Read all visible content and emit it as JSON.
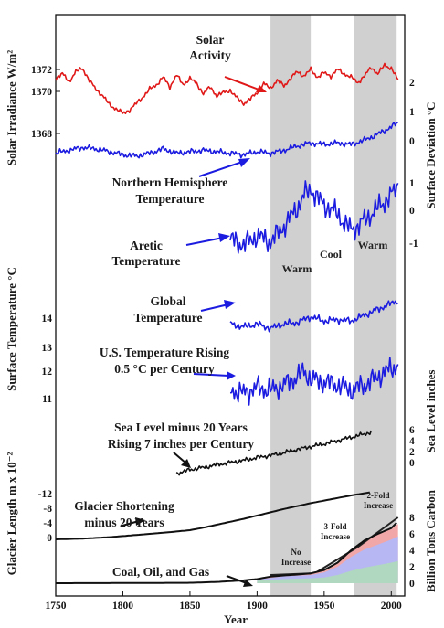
{
  "chart_data": {
    "type": "line",
    "title": "",
    "x_axis": {
      "label": "Year",
      "range": [
        1750,
        2010
      ],
      "ticks": [
        "1750",
        "1800",
        "1850",
        "1900",
        "1950",
        "2000"
      ]
    },
    "shaded_periods": [
      {
        "start": 1910,
        "end": 1940,
        "label": "Warm"
      },
      {
        "start": 1972,
        "end": 2004,
        "label": "Warm"
      }
    ],
    "period_labels": {
      "warm1": "Warm",
      "cool": "Cool",
      "warm2": "Warm"
    },
    "axes_labels": {
      "solar": "Solar Irradiance W/m²",
      "surface_deviation": "Surface Deviation °C",
      "surface_temperature": "Surface Temperature °C",
      "sea_level": "Sea Level inches",
      "glacier": "Glacier Length m x 10⁻²",
      "carbon": "Billion Tons Carbon"
    },
    "solar_ticks": [
      "1372",
      "1370",
      "1368"
    ],
    "deviation_ticks": [
      "2",
      "1",
      "0",
      "1",
      "0",
      "-1"
    ],
    "surface_temp_ticks": [
      "14",
      "13",
      "12",
      "11"
    ],
    "sea_level_ticks": [
      "6",
      "4",
      "2",
      "0"
    ],
    "glacier_ticks": [
      "-12",
      "-8",
      "-4",
      "0"
    ],
    "carbon_ticks": [
      "8",
      "6",
      "4",
      "2",
      "0"
    ],
    "annotations": {
      "solar": [
        "Solar",
        "Activity"
      ],
      "nh": [
        "Northern Hemisphere",
        "Temperature"
      ],
      "arctic": [
        "Aretic",
        "Temperature"
      ],
      "global": [
        "Global",
        "Temperature"
      ],
      "us": [
        "U.S. Temperature Rising",
        "0.5 °C per Century"
      ],
      "sea": [
        "Sea Level minus 20 Years",
        "Rising 7 inches per Century"
      ],
      "glacier": [
        "Glacier Shortening",
        "minus 20 Years"
      ],
      "coal": "Coal, Oil, and Gas",
      "no_increase": [
        "No",
        "Increase"
      ],
      "three_fold": [
        "3-Fold",
        "Increase"
      ],
      "two_fold": [
        "2-Fold",
        "Increase"
      ]
    },
    "series": [
      {
        "name": "Solar Activity",
        "unit": "W/m2",
        "color": "#e01818",
        "points": [
          [
            1750,
            1371.2
          ],
          [
            1755,
            1371.6
          ],
          [
            1760,
            1370.9
          ],
          [
            1765,
            1371.8
          ],
          [
            1770,
            1372.1
          ],
          [
            1775,
            1371.0
          ],
          [
            1780,
            1370.2
          ],
          [
            1785,
            1369.6
          ],
          [
            1790,
            1368.8
          ],
          [
            1795,
            1368.4
          ],
          [
            1800,
            1368.0
          ],
          [
            1805,
            1368.3
          ],
          [
            1810,
            1368.9
          ],
          [
            1815,
            1369.5
          ],
          [
            1820,
            1370.2
          ],
          [
            1825,
            1370.6
          ],
          [
            1830,
            1371.3
          ],
          [
            1835,
            1370.4
          ],
          [
            1840,
            1371.5
          ],
          [
            1845,
            1370.6
          ],
          [
            1850,
            1371.2
          ],
          [
            1855,
            1370.7
          ],
          [
            1860,
            1369.8
          ],
          [
            1865,
            1370.4
          ],
          [
            1870,
            1369.6
          ],
          [
            1875,
            1369.9
          ],
          [
            1880,
            1370.1
          ],
          [
            1885,
            1369.4
          ],
          [
            1890,
            1368.9
          ],
          [
            1895,
            1369.3
          ],
          [
            1900,
            1369.9
          ],
          [
            1905,
            1370.7
          ],
          [
            1910,
            1370.3
          ],
          [
            1915,
            1371.0
          ],
          [
            1920,
            1370.5
          ],
          [
            1925,
            1371.2
          ],
          [
            1930,
            1371.8
          ],
          [
            1935,
            1371.4
          ],
          [
            1940,
            1372.0
          ],
          [
            1945,
            1371.3
          ],
          [
            1950,
            1371.7
          ],
          [
            1955,
            1371.4
          ],
          [
            1960,
            1372.0
          ],
          [
            1965,
            1371.6
          ],
          [
            1970,
            1371.3
          ],
          [
            1975,
            1370.8
          ],
          [
            1980,
            1371.4
          ],
          [
            1985,
            1372.2
          ],
          [
            1990,
            1371.6
          ],
          [
            1995,
            1372.4
          ],
          [
            2000,
            1372.1
          ],
          [
            2003,
            1371.5
          ],
          [
            2005,
            1371.0
          ]
        ]
      },
      {
        "name": "Northern Hemisphere Temperature",
        "unit": "°C",
        "color": "#1c1ce0",
        "points": [
          [
            1750,
            -0.3
          ],
          [
            1760,
            -0.2
          ],
          [
            1770,
            -0.1
          ],
          [
            1780,
            -0.15
          ],
          [
            1790,
            -0.25
          ],
          [
            1800,
            -0.35
          ],
          [
            1810,
            -0.4
          ],
          [
            1820,
            -0.3
          ],
          [
            1830,
            -0.15
          ],
          [
            1840,
            -0.3
          ],
          [
            1850,
            -0.25
          ],
          [
            1860,
            -0.2
          ],
          [
            1870,
            -0.25
          ],
          [
            1880,
            -0.3
          ],
          [
            1890,
            -0.35
          ],
          [
            1900,
            -0.25
          ],
          [
            1910,
            -0.3
          ],
          [
            1920,
            -0.2
          ],
          [
            1930,
            -0.05
          ],
          [
            1940,
            0.05
          ],
          [
            1950,
            0.0
          ],
          [
            1960,
            0.05
          ],
          [
            1970,
            0.0
          ],
          [
            1980,
            0.15
          ],
          [
            1990,
            0.35
          ],
          [
            2000,
            0.6
          ],
          [
            2005,
            0.75
          ]
        ]
      },
      {
        "name": "Aretic Temperature",
        "unit": "°C",
        "color": "#1c1ce0",
        "points": [
          [
            1880,
            -0.8
          ],
          [
            1890,
            -1.0
          ],
          [
            1900,
            -0.7
          ],
          [
            1910,
            -0.9
          ],
          [
            1920,
            -0.4
          ],
          [
            1930,
            0.2
          ],
          [
            1935,
            0.6
          ],
          [
            1940,
            0.8
          ],
          [
            1945,
            0.5
          ],
          [
            1950,
            0.3
          ],
          [
            1960,
            0.0
          ],
          [
            1965,
            -0.3
          ],
          [
            1970,
            -0.5
          ],
          [
            1975,
            -0.4
          ],
          [
            1980,
            -0.2
          ],
          [
            1990,
            0.2
          ],
          [
            2000,
            0.6
          ],
          [
            2005,
            0.9
          ]
        ]
      },
      {
        "name": "Global Temperature",
        "unit": "°C",
        "color": "#1c1ce0",
        "points": [
          [
            1880,
            13.8
          ],
          [
            1890,
            13.7
          ],
          [
            1900,
            13.8
          ],
          [
            1910,
            13.65
          ],
          [
            1920,
            13.8
          ],
          [
            1930,
            13.85
          ],
          [
            1940,
            14.05
          ],
          [
            1950,
            13.9
          ],
          [
            1960,
            13.95
          ],
          [
            1970,
            13.9
          ],
          [
            1980,
            14.1
          ],
          [
            1990,
            14.3
          ],
          [
            2000,
            14.5
          ],
          [
            2005,
            14.6
          ]
        ]
      },
      {
        "name": "U.S. Temperature",
        "unit": "°C",
        "color": "#1c1ce0",
        "points": [
          [
            1880,
            11.3
          ],
          [
            1890,
            11.2
          ],
          [
            1900,
            11.4
          ],
          [
            1910,
            11.3
          ],
          [
            1920,
            11.5
          ],
          [
            1930,
            11.8
          ],
          [
            1935,
            12.0
          ],
          [
            1940,
            11.7
          ],
          [
            1950,
            11.6
          ],
          [
            1960,
            11.5
          ],
          [
            1970,
            11.3
          ],
          [
            1980,
            11.5
          ],
          [
            1990,
            11.8
          ],
          [
            2000,
            12.1
          ],
          [
            2005,
            12.2
          ]
        ]
      },
      {
        "name": "Sea Level",
        "unit": "inches",
        "color": "#111111",
        "points": [
          [
            1840,
            -2.0
          ],
          [
            1850,
            -1.3
          ],
          [
            1860,
            -0.9
          ],
          [
            1870,
            -0.4
          ],
          [
            1880,
            0.0
          ],
          [
            1890,
            0.4
          ],
          [
            1900,
            0.9
          ],
          [
            1910,
            1.3
          ],
          [
            1920,
            1.8
          ],
          [
            1930,
            2.4
          ],
          [
            1940,
            2.9
          ],
          [
            1950,
            3.4
          ],
          [
            1960,
            4.0
          ],
          [
            1970,
            4.6
          ],
          [
            1980,
            5.2
          ],
          [
            1985,
            5.6
          ]
        ]
      },
      {
        "name": "Glacier Shortening",
        "unit": "m x 10^-2",
        "color": "#111111",
        "points": [
          [
            1750,
            0.0
          ],
          [
            1770,
            0.2
          ],
          [
            1790,
            0.6
          ],
          [
            1800,
            0.9
          ],
          [
            1810,
            1.2
          ],
          [
            1830,
            1.8
          ],
          [
            1850,
            2.5
          ],
          [
            1860,
            3.2
          ],
          [
            1870,
            4.0
          ],
          [
            1880,
            4.8
          ],
          [
            1890,
            5.6
          ],
          [
            1900,
            6.5
          ],
          [
            1910,
            7.4
          ],
          [
            1920,
            8.3
          ],
          [
            1930,
            9.1
          ],
          [
            1940,
            9.9
          ],
          [
            1950,
            10.6
          ],
          [
            1960,
            11.3
          ],
          [
            1970,
            12.0
          ],
          [
            1980,
            12.6
          ],
          [
            1985,
            12.9
          ]
        ]
      },
      {
        "name": "Coal, Oil, and Gas",
        "unit": "billion tons carbon",
        "color": "#111111",
        "points": [
          [
            1750,
            0.0
          ],
          [
            1800,
            0.02
          ],
          [
            1850,
            0.05
          ],
          [
            1870,
            0.15
          ],
          [
            1890,
            0.35
          ],
          [
            1900,
            0.5
          ],
          [
            1910,
            0.8
          ],
          [
            1920,
            0.95
          ],
          [
            1930,
            1.05
          ],
          [
            1940,
            1.2
          ],
          [
            1950,
            1.6
          ],
          [
            1960,
            2.5
          ],
          [
            1970,
            4.0
          ],
          [
            1980,
            5.2
          ],
          [
            1990,
            6.0
          ],
          [
            2000,
            6.7
          ],
          [
            2005,
            7.5
          ]
        ]
      }
    ],
    "emission_breakdown": [
      {
        "color": "#f1a7a7",
        "top": [
          [
            1900,
            0.5
          ],
          [
            1920,
            0.95
          ],
          [
            1940,
            1.2
          ],
          [
            1950,
            1.6
          ],
          [
            1960,
            2.5
          ],
          [
            1970,
            4.0
          ],
          [
            1980,
            5.2
          ],
          [
            1990,
            6.0
          ],
          [
            2000,
            6.7
          ],
          [
            2005,
            7.2
          ]
        ]
      },
      {
        "color": "#b7b7f3",
        "top": [
          [
            1900,
            0.45
          ],
          [
            1920,
            0.85
          ],
          [
            1940,
            1.0
          ],
          [
            1950,
            1.3
          ],
          [
            1960,
            2.0
          ],
          [
            1970,
            3.2
          ],
          [
            1980,
            4.1
          ],
          [
            1990,
            4.7
          ],
          [
            2000,
            5.3
          ],
          [
            2005,
            5.7
          ]
        ]
      },
      {
        "color": "#b0d8c0",
        "top": [
          [
            1900,
            0.3
          ],
          [
            1920,
            0.5
          ],
          [
            1940,
            0.6
          ],
          [
            1950,
            0.7
          ],
          [
            1960,
            1.0
          ],
          [
            1970,
            1.5
          ],
          [
            1980,
            1.9
          ],
          [
            1990,
            2.2
          ],
          [
            2000,
            2.5
          ],
          [
            2005,
            2.7
          ]
        ]
      }
    ]
  }
}
